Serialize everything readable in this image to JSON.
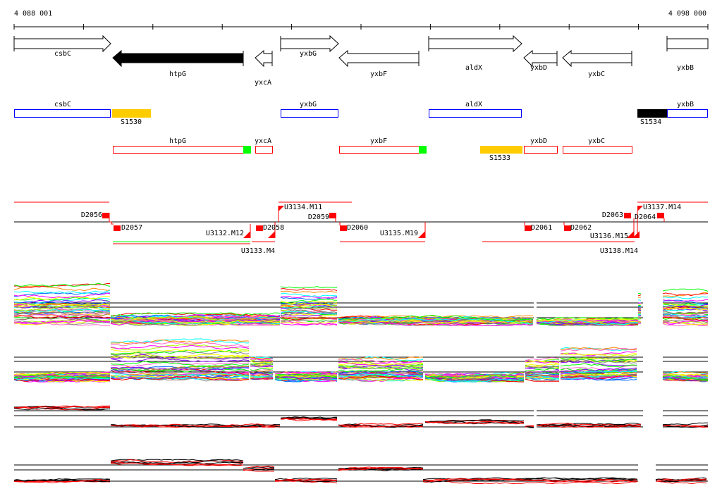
{
  "ruler": {
    "start_label": "4 088 001",
    "end_label": "4 098 000"
  },
  "genes": [
    "csbC",
    "htpG",
    "yxcA",
    "yxbG",
    "yxbF",
    "aldX",
    "yxbD",
    "yxbC",
    "yxbB"
  ],
  "annotation_row1": {
    "genes": [
      "csbC",
      "yxbG",
      "aldX",
      "yxbB"
    ],
    "sites": [
      "S1530",
      "S1534"
    ]
  },
  "annotation_row2": {
    "genes": [
      "htpG",
      "yxcA",
      "yxbF",
      "yxbD",
      "yxbC"
    ],
    "sites": [
      "S1533"
    ]
  },
  "transcription": {
    "downshifts": [
      "D2056",
      "D2057",
      "D2058",
      "D2059",
      "D2060",
      "D2061",
      "D2062",
      "D2063",
      "D2064"
    ],
    "upshifts": [
      "U3132.M12",
      "U3133.M4",
      "U3134.M11",
      "U3135.M19",
      "U3136.M15",
      "U3138.M14",
      "U3137.M14"
    ]
  },
  "colors": {
    "forward_box": "#0000ff",
    "reverse_box": "#ff0000",
    "site_yellow": "#ffcc00",
    "terminator": "#00ff00"
  }
}
